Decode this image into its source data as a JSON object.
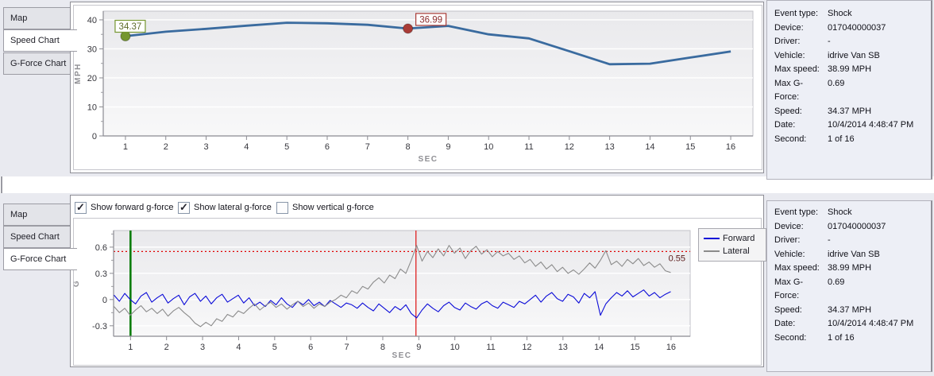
{
  "tabs": [
    "Map",
    "Speed Chart",
    "G-Force Chart"
  ],
  "top_section": {
    "active_tab": "Speed Chart"
  },
  "bottom_section": {
    "active_tab": "G-Force Chart"
  },
  "info": {
    "rows": [
      {
        "label": "Event type:",
        "value": "Shock"
      },
      {
        "label": "Device:",
        "value": "017040000037"
      },
      {
        "label": "Driver:",
        "value": "-"
      },
      {
        "label": "Vehicle:",
        "value": "idrive Van SB"
      },
      {
        "label": "Max speed:",
        "value": "38.99 MPH"
      },
      {
        "label": "Max G-Force:",
        "value": "0.69"
      },
      {
        "label": "Speed:",
        "value": "34.37 MPH"
      },
      {
        "label": "Date:",
        "value": "10/4/2014 4:48:47 PM"
      },
      {
        "label": "Second:",
        "value": "1 of 16"
      }
    ]
  },
  "gforce_controls": {
    "checkboxes": [
      {
        "label": "Show forward g-force",
        "checked": true,
        "mark": "✓"
      },
      {
        "label": "Show lateral g-force",
        "checked": true,
        "mark": "✓"
      },
      {
        "label": "Show vertical g-force",
        "checked": false,
        "mark": ""
      }
    ]
  },
  "chart_data": [
    {
      "type": "line",
      "title": "Speed Chart",
      "xlabel": "SEC",
      "ylabel": "MPH",
      "xlim": [
        0.45,
        16.55
      ],
      "ylim": [
        0,
        43
      ],
      "x_ticks": [
        1,
        2,
        3,
        4,
        5,
        6,
        7,
        8,
        9,
        10,
        11,
        12,
        13,
        14,
        15,
        16
      ],
      "y_ticks": [
        0,
        10,
        20,
        30,
        40
      ],
      "y_minor": [
        5,
        15,
        25,
        35
      ],
      "grid": "horizontal",
      "line_color": "#3a6b9f",
      "line_width": 2.8,
      "x": [
        1,
        2,
        3,
        4,
        5,
        6,
        7,
        8,
        9,
        10,
        11,
        12,
        13,
        14,
        15,
        16
      ],
      "values": [
        34.37,
        35.9,
        36.9,
        38.0,
        38.99,
        38.8,
        38.3,
        36.99,
        37.9,
        35.0,
        33.6,
        29.2,
        24.7,
        24.9,
        27.0,
        29.1
      ],
      "markers": [
        {
          "name": "selected-second-marker",
          "x": 1,
          "y": 34.37,
          "color": "#75962f",
          "label": "34.37",
          "label_color": "#5d6b2a",
          "box": [
            -13,
            -20
          ]
        },
        {
          "name": "shock-second-marker",
          "x": 8,
          "y": 36.99,
          "color": "#a93b36",
          "label": "36.99",
          "label_color": "#8e2e2e",
          "box": [
            10,
            -19
          ]
        }
      ]
    },
    {
      "type": "line",
      "title": "G-Force Chart",
      "xlabel": "SEC",
      "ylabel": "G",
      "xlim": [
        0.53,
        16.53
      ],
      "ylim": [
        -0.42,
        0.79
      ],
      "x_ticks": [
        1,
        2,
        3,
        4,
        5,
        6,
        7,
        8,
        9,
        10,
        11,
        12,
        13,
        14,
        15,
        16
      ],
      "y_ticks": [
        -0.3,
        0,
        0.3,
        0.6
      ],
      "y_minor": [
        -0.15,
        0.15,
        0.45,
        0.75
      ],
      "grid": "horizontal",
      "hline": {
        "y": 0.55,
        "color": "#e00000",
        "style": "dotted",
        "label": "0.55"
      },
      "vlines": [
        {
          "name": "event-start-line",
          "x": 1.0,
          "color": "#0c7d0c",
          "width": 2.6
        },
        {
          "name": "shock-moment-line",
          "x": 8.92,
          "color": "#e03030",
          "width": 1.4
        }
      ],
      "legend": {
        "position": "right-top",
        "entries": [
          {
            "label": "Forward",
            "color": "#0b0bd8"
          },
          {
            "label": "Lateral",
            "color": "#8b8b8b"
          }
        ]
      },
      "series": [
        {
          "name": "Forward",
          "color": "#0b0bd8",
          "width": 1.1,
          "x0": 0.54,
          "dx": 0.15,
          "values": [
            0.05,
            -0.02,
            0.07,
            0.0,
            -0.05,
            0.04,
            0.08,
            -0.03,
            0.02,
            0.06,
            -0.04,
            0.01,
            0.05,
            -0.06,
            0.03,
            0.07,
            -0.02,
            0.04,
            -0.05,
            0.02,
            0.06,
            -0.03,
            0.01,
            0.05,
            -0.04,
            0.02,
            -0.07,
            -0.03,
            -0.08,
            -0.01,
            -0.06,
            0.02,
            -0.05,
            -0.09,
            -0.02,
            -0.06,
            0.0,
            -0.07,
            -0.03,
            -0.08,
            -0.01,
            -0.05,
            -0.09,
            -0.04,
            -0.06,
            -0.1,
            -0.04,
            -0.09,
            -0.13,
            -0.05,
            -0.1,
            -0.15,
            -0.08,
            -0.12,
            -0.06,
            -0.16,
            -0.21,
            -0.12,
            -0.05,
            -0.1,
            -0.14,
            -0.07,
            -0.03,
            -0.09,
            -0.12,
            -0.04,
            -0.08,
            -0.11,
            -0.05,
            -0.02,
            -0.07,
            -0.1,
            -0.03,
            -0.06,
            -0.09,
            -0.02,
            -0.05,
            0.0,
            0.05,
            -0.03,
            0.04,
            0.08,
            0.01,
            -0.02,
            0.06,
            0.03,
            -0.04,
            0.07,
            0.02,
            0.09,
            -0.18,
            -0.05,
            0.02,
            0.08,
            0.04,
            0.1,
            0.03,
            0.07,
            0.11,
            0.04,
            0.08,
            0.02,
            0.06,
            0.09
          ]
        },
        {
          "name": "Lateral",
          "color": "#8b8b8b",
          "width": 1.1,
          "x0": 0.54,
          "dx": 0.15,
          "values": [
            -0.08,
            -0.15,
            -0.1,
            -0.18,
            -0.12,
            -0.07,
            -0.14,
            -0.1,
            -0.16,
            -0.11,
            -0.19,
            -0.13,
            -0.09,
            -0.15,
            -0.2,
            -0.27,
            -0.31,
            -0.26,
            -0.3,
            -0.22,
            -0.25,
            -0.17,
            -0.2,
            -0.13,
            -0.16,
            -0.1,
            -0.05,
            -0.12,
            -0.07,
            -0.03,
            -0.09,
            -0.05,
            -0.11,
            -0.06,
            -0.02,
            -0.08,
            -0.04,
            -0.1,
            -0.05,
            -0.08,
            -0.03,
            0.0,
            0.05,
            0.02,
            0.1,
            0.07,
            0.15,
            0.12,
            0.2,
            0.25,
            0.19,
            0.28,
            0.24,
            0.35,
            0.3,
            0.45,
            0.62,
            0.44,
            0.55,
            0.48,
            0.58,
            0.5,
            0.62,
            0.53,
            0.59,
            0.47,
            0.56,
            0.61,
            0.52,
            0.57,
            0.49,
            0.55,
            0.5,
            0.53,
            0.46,
            0.5,
            0.42,
            0.46,
            0.38,
            0.43,
            0.35,
            0.4,
            0.32,
            0.37,
            0.3,
            0.34,
            0.29,
            0.35,
            0.42,
            0.36,
            0.45,
            0.56,
            0.4,
            0.44,
            0.38,
            0.46,
            0.41,
            0.47,
            0.39,
            0.43,
            0.37,
            0.41,
            0.33,
            0.31
          ]
        }
      ]
    }
  ]
}
